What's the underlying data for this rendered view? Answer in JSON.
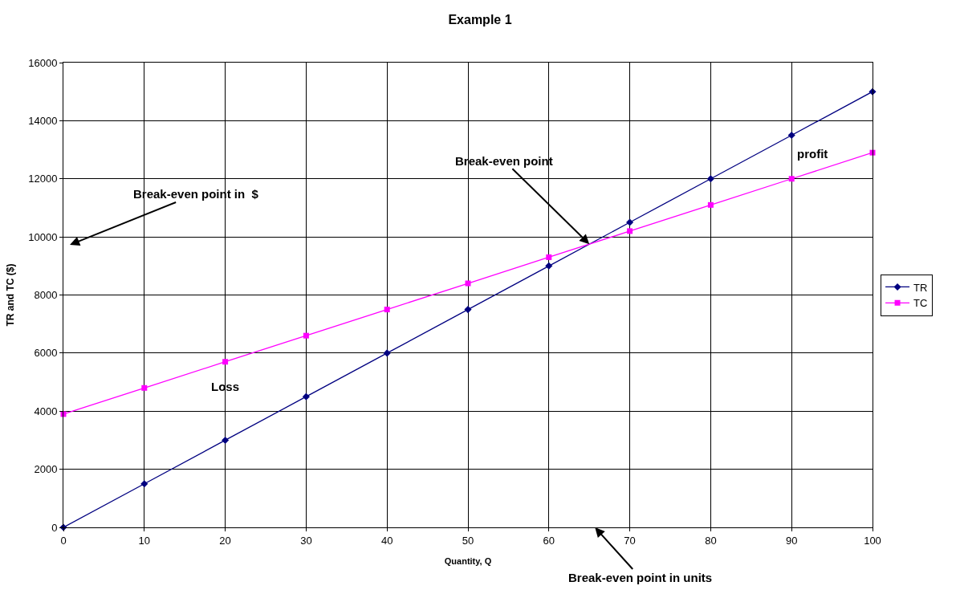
{
  "chart_data": {
    "type": "line",
    "title": "Example 1",
    "xlabel": "Quantity, Q",
    "ylabel": "TR and TC ($)",
    "x": [
      0,
      10,
      20,
      30,
      40,
      50,
      60,
      70,
      80,
      90,
      100
    ],
    "series": [
      {
        "name": "TR",
        "color": "#000080",
        "marker": "diamond",
        "values": [
          0,
          1500,
          3000,
          4500,
          6000,
          7500,
          9000,
          10500,
          12000,
          13500,
          15000
        ]
      },
      {
        "name": "TC",
        "color": "#ff00ff",
        "marker": "square",
        "values": [
          3900,
          4800,
          5700,
          6600,
          7500,
          8400,
          9300,
          10200,
          11100,
          12000,
          12900
        ]
      }
    ],
    "xlim": [
      0,
      100
    ],
    "xticks": [
      0,
      10,
      20,
      30,
      40,
      50,
      60,
      70,
      80,
      90,
      100
    ],
    "ylim": [
      0,
      16000
    ],
    "yticks": [
      0,
      2000,
      4000,
      6000,
      8000,
      10000,
      12000,
      14000,
      16000
    ],
    "grid": true,
    "legend": "right",
    "line_style": "solid",
    "annotations": [
      "Break-even point in  $",
      {
        "text": "Break-even point",
        "x": 65,
        "y": 9750
      },
      "Break-even point in units",
      "Loss",
      "profit"
    ]
  }
}
